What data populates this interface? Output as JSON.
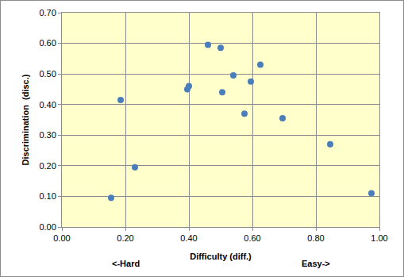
{
  "chart_data": {
    "type": "scatter",
    "x_label": "Difficulty (diff.)",
    "y_label": "Discrimination  (disc.)",
    "annotations": [
      "<-Hard",
      "Easy->"
    ],
    "x": [
      0.155,
      0.185,
      0.23,
      0.395,
      0.4,
      0.46,
      0.5,
      0.505,
      0.54,
      0.575,
      0.595,
      0.625,
      0.695,
      0.845,
      0.975
    ],
    "values": [
      0.095,
      0.415,
      0.195,
      0.45,
      0.46,
      0.595,
      0.585,
      0.44,
      0.495,
      0.37,
      0.475,
      0.53,
      0.355,
      0.27,
      0.11
    ],
    "color": "#4a7ebb",
    "marker": "circle",
    "xlim": [
      0,
      1
    ],
    "xticks": [
      {
        "value": 0,
        "label": "0.00"
      },
      {
        "value": 0.2,
        "label": "0.20"
      },
      {
        "value": 0.4,
        "label": "0.40"
      },
      {
        "value": 0.6,
        "label": "0.60"
      },
      {
        "value": 0.8,
        "label": "0.80"
      },
      {
        "value": 1,
        "label": "1.00"
      }
    ],
    "ylim": [
      0,
      0.7
    ],
    "yticks": [
      {
        "value": 0,
        "label": "0.00"
      },
      {
        "value": 0.1,
        "label": "0.10"
      },
      {
        "value": 0.2,
        "label": "0.20"
      },
      {
        "value": 0.3,
        "label": "0.30"
      },
      {
        "value": 0.4,
        "label": "0.40"
      },
      {
        "value": 0.5,
        "label": "0.50"
      },
      {
        "value": 0.6,
        "label": "0.60"
      },
      {
        "value": 0.7,
        "label": "0.70"
      }
    ],
    "grid": true
  }
}
